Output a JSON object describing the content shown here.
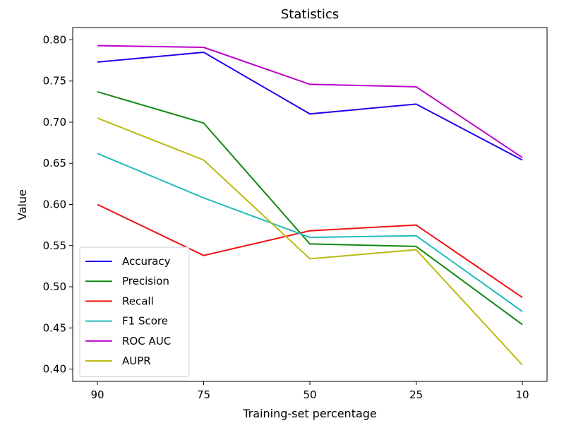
{
  "chart_data": {
    "type": "line",
    "title": "Statistics",
    "xlabel": "Training-set percentage",
    "ylabel": "Value",
    "categories": [
      "90",
      "75",
      "50",
      "25",
      "10"
    ],
    "ylim": [
      0.385,
      0.815
    ],
    "yticks": [
      "0.40",
      "0.45",
      "0.50",
      "0.55",
      "0.60",
      "0.65",
      "0.70",
      "0.75",
      "0.80"
    ],
    "grid": false,
    "legend_position": "lower-left",
    "series": [
      {
        "name": "Accuracy",
        "color": "#2200ee",
        "values": [
          0.773,
          0.785,
          0.71,
          0.722,
          0.654
        ]
      },
      {
        "name": "Precision",
        "color": "#118811",
        "values": [
          0.737,
          0.699,
          0.552,
          0.549,
          0.454
        ]
      },
      {
        "name": "Recall",
        "color": "#ee1111",
        "values": [
          0.6,
          0.538,
          0.568,
          0.575,
          0.487
        ]
      },
      {
        "name": "F1 Score",
        "color": "#22bbbb",
        "values": [
          0.662,
          0.608,
          0.56,
          0.562,
          0.47
        ]
      },
      {
        "name": "ROC AUC",
        "color": "#bb00cc",
        "values": [
          0.793,
          0.791,
          0.746,
          0.743,
          0.657
        ]
      },
      {
        "name": "AUPR",
        "color": "#bbbb11",
        "values": [
          0.705,
          0.654,
          0.534,
          0.545,
          0.405
        ]
      }
    ]
  }
}
